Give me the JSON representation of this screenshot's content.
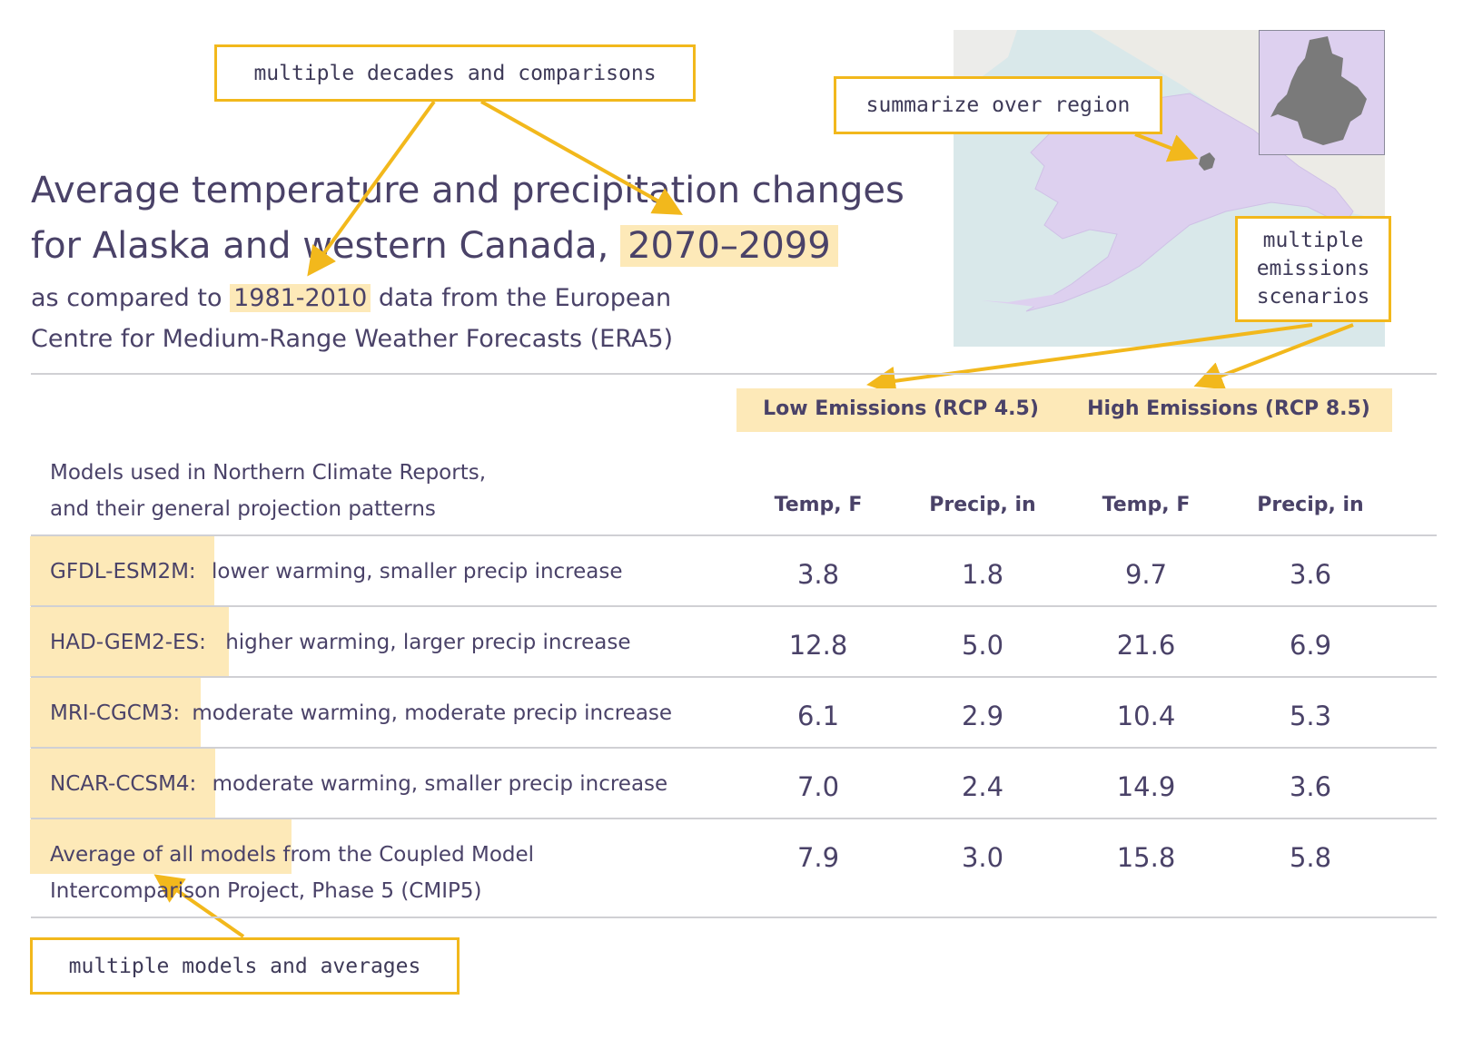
{
  "callouts": {
    "decades": "multiple decades and comparisons",
    "region": "summarize over region",
    "emissions": [
      "multiple",
      "emissions",
      "scenarios"
    ],
    "models": "multiple models and averages"
  },
  "title": {
    "line1": "Average temperature and precipitation changes",
    "line2_prefix": "for Alaska and western Canada,",
    "line2_highlight": "2070–2099"
  },
  "subtitle": {
    "prefix": "as compared to",
    "highlight": "1981-2010",
    "suffix": "data from the European",
    "line2": "Centre for Medium-Range Weather Forecasts (ERA5)"
  },
  "scenarios": {
    "low": "Low Emissions (RCP 4.5)",
    "high": "High Emissions (RCP 8.5)"
  },
  "table": {
    "intro": [
      "Models used in Northern Climate Reports,",
      "and their general projection patterns"
    ],
    "columns": [
      "Temp, F",
      "Precip, in",
      "Temp, F",
      "Precip, in"
    ],
    "rows": [
      {
        "model": "GFDL-ESM2M:",
        "desc": "lower warming, smaller precip increase",
        "values": [
          "3.8",
          "1.8",
          "9.7",
          "3.6"
        ]
      },
      {
        "model": "HAD-GEM2-ES:",
        "desc": "higher warming, larger precip increase",
        "values": [
          "12.8",
          "5.0",
          "21.6",
          "6.9"
        ]
      },
      {
        "model": "MRI-CGCM3:",
        "desc": "moderate warming, moderate precip increase",
        "values": [
          "6.1",
          "2.9",
          "10.4",
          "5.3"
        ]
      },
      {
        "model": "NCAR-CCSM4:",
        "desc": "moderate warming, smaller precip increase",
        "values": [
          "7.0",
          "2.4",
          "14.9",
          "3.6"
        ]
      }
    ],
    "average": {
      "highlight": "Average of all models",
      "rest": "from the Coupled Model",
      "line2": "Intercomparison Project, Phase 5 (CMIP5)",
      "values": [
        "7.9",
        "3.0",
        "15.8",
        "5.8"
      ]
    }
  },
  "colors": {
    "accent": "#f2b81c",
    "highlight": "#fde9b8",
    "text": "#4a4268",
    "map_water": "#d9e8ea",
    "map_region": "#ddd0ef",
    "map_selected": "#7a7a7a"
  }
}
